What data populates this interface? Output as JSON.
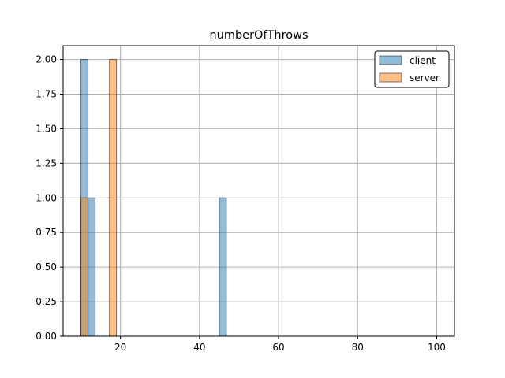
{
  "chart_data": {
    "type": "bar",
    "title": "numberOfThrows",
    "xlabel": "",
    "ylabel": "",
    "xlim": [
      5.5,
      104.5
    ],
    "ylim": [
      0,
      2.1
    ],
    "grid": true,
    "legend_position": "top-right",
    "x_ticks": [
      20,
      40,
      60,
      80,
      100
    ],
    "y_ticks": [
      0.0,
      0.25,
      0.5,
      0.75,
      1.0,
      1.25,
      1.5,
      1.75,
      2.0
    ],
    "x_tick_labels": [
      "20",
      "40",
      "60",
      "80",
      "100"
    ],
    "y_tick_labels": [
      "0.00",
      "0.25",
      "0.50",
      "0.75",
      "1.00",
      "1.25",
      "1.50",
      "1.75",
      "2.00"
    ],
    "series": [
      {
        "name": "client",
        "color": "#1f77b4",
        "bins": [
          {
            "x0": 10.0,
            "x1": 11.8,
            "count": 2
          },
          {
            "x0": 11.8,
            "x1": 13.6,
            "count": 1
          },
          {
            "x0": 45.0,
            "x1": 46.8,
            "count": 1
          }
        ]
      },
      {
        "name": "server",
        "color": "#ff7f0e",
        "bins": [
          {
            "x0": 10.0,
            "x1": 11.8,
            "count": 1
          },
          {
            "x0": 17.2,
            "x1": 19.0,
            "count": 2
          }
        ]
      }
    ]
  }
}
